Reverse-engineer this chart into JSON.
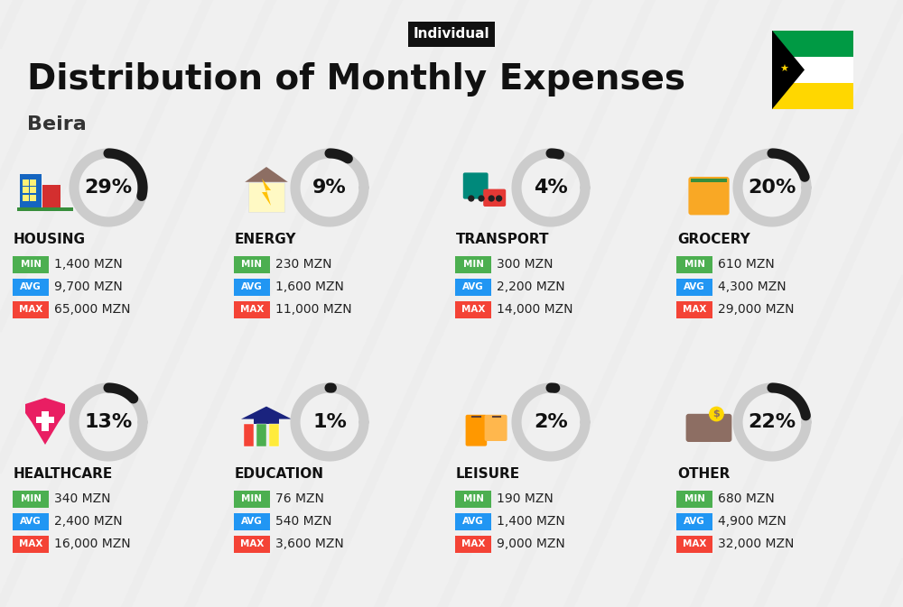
{
  "title": "Distribution of Monthly Expenses",
  "subtitle": "Individual",
  "city": "Beira",
  "bg_color": "#f0f0f0",
  "categories": [
    {
      "name": "HOUSING",
      "percent": 29,
      "min_val": "1,400 MZN",
      "avg_val": "9,700 MZN",
      "max_val": "65,000 MZN",
      "icon_color": "#2196F3",
      "row": 0,
      "col": 0
    },
    {
      "name": "ENERGY",
      "percent": 9,
      "min_val": "230 MZN",
      "avg_val": "1,600 MZN",
      "max_val": "11,000 MZN",
      "icon_color": "#FFC107",
      "row": 0,
      "col": 1
    },
    {
      "name": "TRANSPORT",
      "percent": 4,
      "min_val": "300 MZN",
      "avg_val": "2,200 MZN",
      "max_val": "14,000 MZN",
      "icon_color": "#26A69A",
      "row": 0,
      "col": 2
    },
    {
      "name": "GROCERY",
      "percent": 20,
      "min_val": "610 MZN",
      "avg_val": "4,300 MZN",
      "max_val": "29,000 MZN",
      "icon_color": "#FF7043",
      "row": 0,
      "col": 3
    },
    {
      "name": "HEALTHCARE",
      "percent": 13,
      "min_val": "340 MZN",
      "avg_val": "2,400 MZN",
      "max_val": "16,000 MZN",
      "icon_color": "#E91E63",
      "row": 1,
      "col": 0
    },
    {
      "name": "EDUCATION",
      "percent": 1,
      "min_val": "76 MZN",
      "avg_val": "540 MZN",
      "max_val": "3,600 MZN",
      "icon_color": "#4CAF50",
      "row": 1,
      "col": 1
    },
    {
      "name": "LEISURE",
      "percent": 2,
      "min_val": "190 MZN",
      "avg_val": "1,400 MZN",
      "max_val": "9,000 MZN",
      "icon_color": "#FF9800",
      "row": 1,
      "col": 2
    },
    {
      "name": "OTHER",
      "percent": 22,
      "min_val": "680 MZN",
      "avg_val": "4,900 MZN",
      "max_val": "32,000 MZN",
      "icon_color": "#795548",
      "row": 1,
      "col": 3
    }
  ],
  "min_color": "#4CAF50",
  "avg_color": "#2196F3",
  "max_color": "#F44336",
  "label_text_color": "#ffffff",
  "donut_active_color": "#1a1a1a",
  "donut_bg_color": "#cccccc",
  "title_fontsize": 28,
  "subtitle_fontsize": 11,
  "city_fontsize": 16,
  "cat_fontsize": 11,
  "val_fontsize": 10,
  "pct_fontsize": 16
}
